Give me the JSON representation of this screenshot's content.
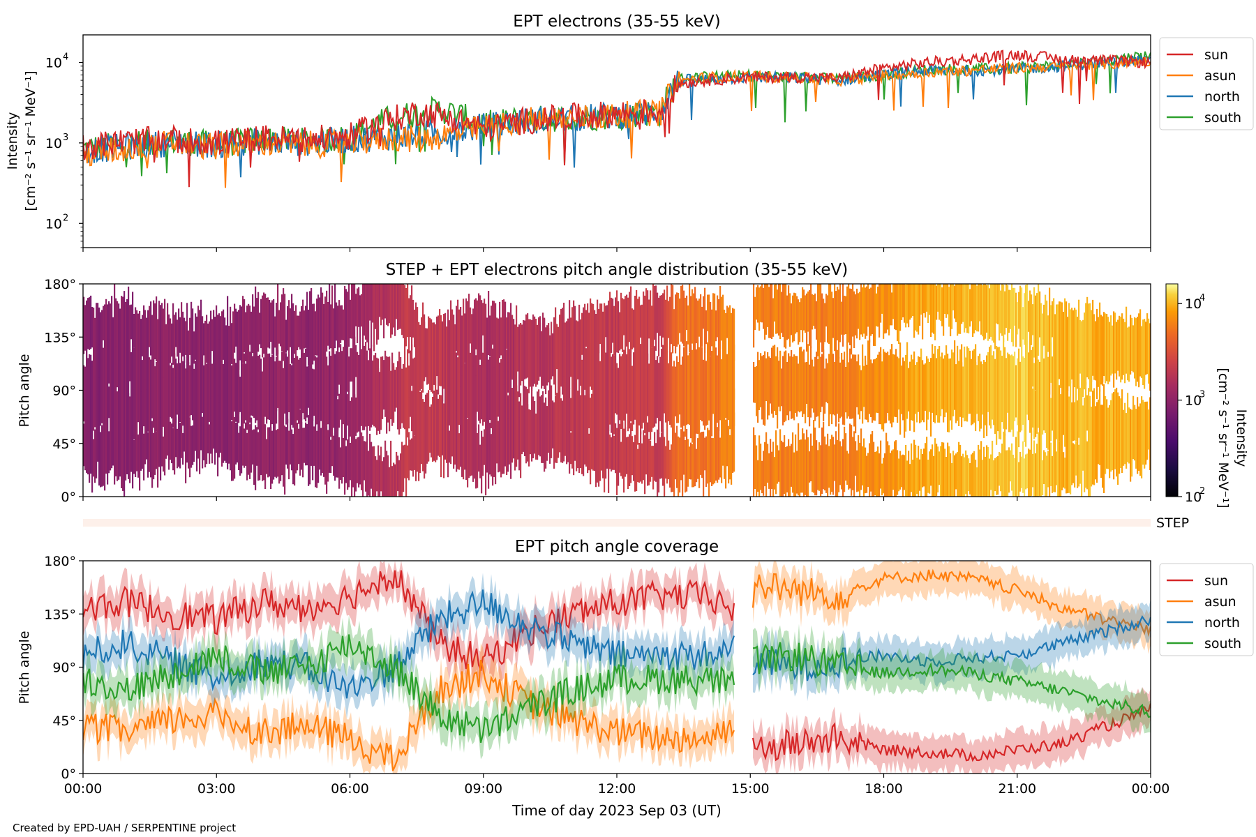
{
  "footer": {
    "credit": "Created by EPD-UAH / SERPENTINE project"
  },
  "colors": {
    "sun": "#d62728",
    "asun": "#ff7f0e",
    "north": "#1f77b4",
    "south": "#2ca02c",
    "step_band": "#fdf0ea"
  },
  "chart_data": [
    {
      "id": "intensity",
      "type": "line",
      "title": "EPT electrons (35-55 keV)",
      "ylabel": [
        "Intensity",
        "[cm⁻² s⁻¹ sr⁻¹ MeV⁻¹]"
      ],
      "yscale": "log",
      "ylim": [
        50,
        22000
      ],
      "yticks": [
        100,
        1000,
        10000
      ],
      "ytick_labels": [
        "10",
        "10",
        "10"
      ],
      "ytick_exponents": [
        "2",
        "3",
        "4"
      ],
      "xlim_hours": [
        0,
        24
      ],
      "legend": {
        "placement": "right-outside-top",
        "entries": [
          "sun",
          "asun",
          "north",
          "south"
        ]
      },
      "x_hours": [
        0,
        1,
        2,
        3,
        4,
        5,
        6,
        7,
        7.5,
        8,
        9,
        10,
        11,
        12,
        13,
        13.4,
        14,
        15,
        16,
        17,
        18,
        19,
        20,
        21,
        22,
        23,
        24
      ],
      "series": [
        {
          "name": "sun",
          "values": [
            900,
            1050,
            1100,
            1000,
            1150,
            1100,
            1200,
            2000,
            2400,
            2200,
            1500,
            1900,
            2100,
            2300,
            2500,
            5500,
            6000,
            6500,
            6600,
            6300,
            8500,
            10000,
            11000,
            12500,
            11000,
            10500,
            10000
          ]
        },
        {
          "name": "asun",
          "values": [
            700,
            850,
            1000,
            900,
            1000,
            950,
            1000,
            1150,
            1100,
            1200,
            1500,
            1900,
            2000,
            2200,
            2400,
            5800,
            6500,
            6800,
            6500,
            6000,
            6800,
            7500,
            8000,
            8500,
            9000,
            9500,
            10500
          ]
        },
        {
          "name": "north",
          "values": [
            800,
            900,
            1000,
            950,
            1050,
            1000,
            1100,
            1200,
            1250,
            1300,
            1600,
            1900,
            2000,
            2200,
            2400,
            6000,
            6200,
            6500,
            6400,
            6000,
            7000,
            8000,
            8000,
            8200,
            9000,
            10000,
            11000
          ]
        },
        {
          "name": "south",
          "values": [
            850,
            950,
            1050,
            950,
            1100,
            1050,
            1150,
            2100,
            2300,
            2600,
            1700,
            2000,
            2000,
            2200,
            2400,
            6200,
            6600,
            6900,
            6600,
            6200,
            7000,
            8200,
            8200,
            8500,
            9200,
            10500,
            12500
          ]
        }
      ]
    },
    {
      "id": "pad",
      "type": "heatmap",
      "title": "STEP + EPT electrons pitch angle distribution (35-55 keV)",
      "ylabel": "Pitch angle",
      "ylim": [
        0,
        180
      ],
      "yticks": [
        0,
        45,
        90,
        135,
        180
      ],
      "ytick_labels": [
        "0°",
        "45°",
        "90°",
        "135°",
        "180°"
      ],
      "xlim_hours": [
        0,
        24
      ],
      "colorbar": {
        "label": [
          "Intensity",
          "[cm⁻² s⁻¹ sr⁻¹ MeV⁻¹]"
        ],
        "scale": "log",
        "range": [
          100,
          16000
        ],
        "ticks": [
          100,
          1000,
          10000
        ],
        "tick_labels": [
          "10",
          "10",
          "10"
        ],
        "tick_exponents": [
          "2",
          "3",
          "4"
        ],
        "colormap": "inferno"
      },
      "step_label": "STEP",
      "gap_hours": [
        14.65,
        15.05
      ]
    },
    {
      "id": "coverage",
      "type": "line",
      "title": "EPT pitch angle coverage",
      "ylabel": "Pitch angle",
      "xlabel": "Time of day 2023 Sep 03 (UT)",
      "ylim": [
        0,
        180
      ],
      "yticks": [
        0,
        45,
        90,
        135,
        180
      ],
      "ytick_labels": [
        "0°",
        "45°",
        "90°",
        "135°",
        "180°"
      ],
      "xlim_hours": [
        0,
        24
      ],
      "xticks_hours": [
        0,
        3,
        6,
        9,
        12,
        15,
        18,
        21,
        24
      ],
      "xtick_labels": [
        "00:00",
        "03:00",
        "06:00",
        "09:00",
        "12:00",
        "15:00",
        "18:00",
        "21:00",
        "00:00"
      ],
      "legend": {
        "placement": "right-outside-top",
        "entries": [
          "sun",
          "asun",
          "north",
          "south"
        ]
      },
      "gap_hours": [
        14.65,
        15.05
      ],
      "x_hours": [
        0,
        1,
        2,
        3,
        4,
        5,
        6,
        7,
        8,
        9,
        10,
        11,
        12,
        13,
        14,
        14.6,
        15.1,
        16,
        17,
        18,
        19,
        20,
        21,
        22,
        23,
        23.7,
        24
      ],
      "series": [
        {
          "name": "sun",
          "values": [
            140,
            145,
            135,
            130,
            145,
            140,
            150,
            170,
            110,
            95,
            120,
            135,
            145,
            150,
            150,
            140,
            20,
            25,
            30,
            20,
            18,
            15,
            20,
            25,
            40,
            50,
            55
          ]
        },
        {
          "name": "asun",
          "values": [
            40,
            35,
            45,
            50,
            35,
            40,
            30,
            10,
            70,
            85,
            60,
            45,
            35,
            30,
            30,
            40,
            160,
            155,
            150,
            165,
            168,
            165,
            155,
            140,
            130,
            125,
            120
          ]
        },
        {
          "name": "north",
          "values": [
            100,
            110,
            95,
            80,
            95,
            90,
            70,
            90,
            130,
            145,
            125,
            110,
            100,
            100,
            100,
            105,
            95,
            90,
            95,
            100,
            95,
            98,
            100,
            110,
            120,
            128,
            130
          ]
        },
        {
          "name": "south",
          "values": [
            80,
            70,
            85,
            100,
            85,
            90,
            110,
            90,
            50,
            35,
            55,
            70,
            80,
            80,
            80,
            75,
            95,
            100,
            90,
            85,
            88,
            85,
            78,
            70,
            60,
            55,
            50
          ]
        }
      ]
    }
  ]
}
